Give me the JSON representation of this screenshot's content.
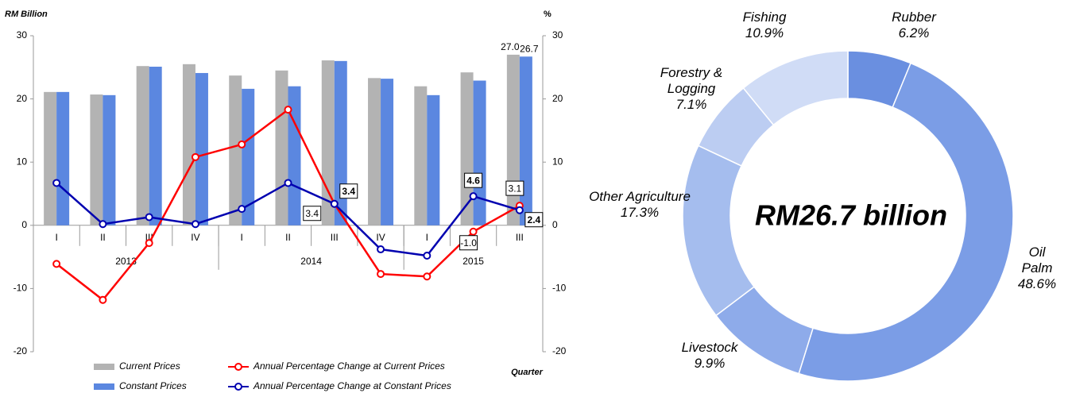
{
  "chart_data": [
    {
      "type": "combo",
      "y_label": "RM Billion",
      "y2_label": "%",
      "x_label": "Quarter",
      "categories": [
        "I",
        "II",
        "III",
        "IV",
        "I",
        "II",
        "III",
        "IV",
        "I",
        "II",
        "III"
      ],
      "groups": [
        {
          "label": "2013",
          "count": 4
        },
        {
          "label": "2014",
          "count": 4
        },
        {
          "label": "2015",
          "count": 3
        }
      ],
      "ylim": [
        -20,
        30
      ],
      "yticks": [
        -20,
        -10,
        0,
        10,
        20,
        30
      ],
      "y2lim": [
        -20,
        30
      ],
      "y2ticks": [
        -20,
        -10,
        0,
        10,
        20,
        30
      ],
      "series": [
        {
          "name": "Current Prices",
          "kind": "bar",
          "color": "#b3b3b3",
          "values": [
            21.1,
            20.7,
            25.2,
            25.5,
            23.7,
            24.5,
            26.1,
            23.3,
            22.0,
            24.2,
            27.0
          ],
          "value_labels": [
            null,
            null,
            null,
            null,
            null,
            null,
            null,
            null,
            null,
            null,
            "27.0"
          ]
        },
        {
          "name": "Constant Prices",
          "kind": "bar",
          "color": "#5b87e0",
          "values": [
            21.1,
            20.6,
            25.1,
            24.1,
            21.6,
            22.0,
            26.0,
            23.2,
            20.6,
            22.9,
            26.7
          ],
          "value_labels": [
            null,
            null,
            null,
            null,
            null,
            null,
            null,
            null,
            null,
            null,
            "26.7"
          ]
        },
        {
          "name": "Annual Percentage Change at Current Prices",
          "kind": "line",
          "axis": "y2",
          "color": "#ff0000",
          "values": [
            -6.1,
            -11.8,
            -2.8,
            10.8,
            12.8,
            18.3,
            3.4,
            -7.7,
            -8.1,
            -1.0,
            3.1
          ],
          "value_labels": [
            null,
            null,
            null,
            null,
            null,
            null,
            "3.4",
            null,
            null,
            "-1.0",
            "3.1"
          ]
        },
        {
          "name": "Annual Percentage Change at Constant Prices",
          "kind": "line",
          "axis": "y2",
          "color": "#0000b0",
          "values": [
            6.7,
            0.2,
            1.3,
            0.2,
            2.6,
            6.7,
            3.4,
            -3.8,
            -4.8,
            4.6,
            2.4
          ],
          "value_labels": [
            null,
            null,
            null,
            null,
            null,
            null,
            "3.4",
            null,
            null,
            "4.6",
            "2.4"
          ]
        }
      ]
    },
    {
      "type": "donut",
      "center_label": "RM26.7 billion",
      "categories": [
        "Rubber",
        "Oil Palm",
        "Livestock",
        "Other Agriculture",
        "Forestry & Logging",
        "Fishing"
      ],
      "values": [
        6.2,
        48.6,
        9.9,
        17.3,
        7.1,
        10.9
      ],
      "value_labels": [
        "6.2%",
        "48.6%",
        "9.9%",
        "17.3%",
        "7.1%",
        "10.9%"
      ],
      "colors": [
        "#6a8fe0",
        "#7b9de6",
        "#8eabea",
        "#a5bdee",
        "#bccdf2",
        "#d0dcf6"
      ]
    }
  ]
}
